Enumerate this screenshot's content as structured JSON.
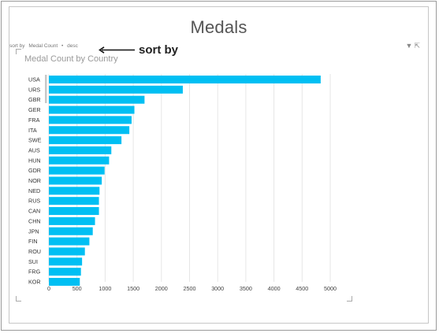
{
  "page": {
    "title": "Medals"
  },
  "sort_bar": {
    "prefix": "sort by",
    "field": "Medal Count",
    "order": "desc"
  },
  "annotation": {
    "text": "sort by"
  },
  "icons": {
    "filter": "filter-icon",
    "popout": "popout-icon"
  },
  "colors": {
    "bar": "#00bff3",
    "grid": "#e6e6e6"
  },
  "chart_data": {
    "type": "bar",
    "orientation": "horizontal",
    "title": "Medal Count by Country",
    "categories": [
      "USA",
      "URS",
      "GBR",
      "GER",
      "FRA",
      "ITA",
      "SWE",
      "AUS",
      "HUN",
      "GDR",
      "NOR",
      "NED",
      "RUS",
      "CAN",
      "CHN",
      "JPN",
      "FIN",
      "ROU",
      "SUI",
      "FRG",
      "KOR"
    ],
    "values": [
      4830,
      2380,
      1700,
      1520,
      1470,
      1430,
      1290,
      1110,
      1070,
      990,
      940,
      900,
      890,
      890,
      820,
      780,
      720,
      640,
      590,
      570,
      550
    ],
    "xlim": [
      0,
      5000
    ],
    "xticks": [
      0,
      500,
      1000,
      1500,
      2000,
      2500,
      3000,
      3500,
      4000,
      4500,
      5000
    ],
    "grid": true
  }
}
